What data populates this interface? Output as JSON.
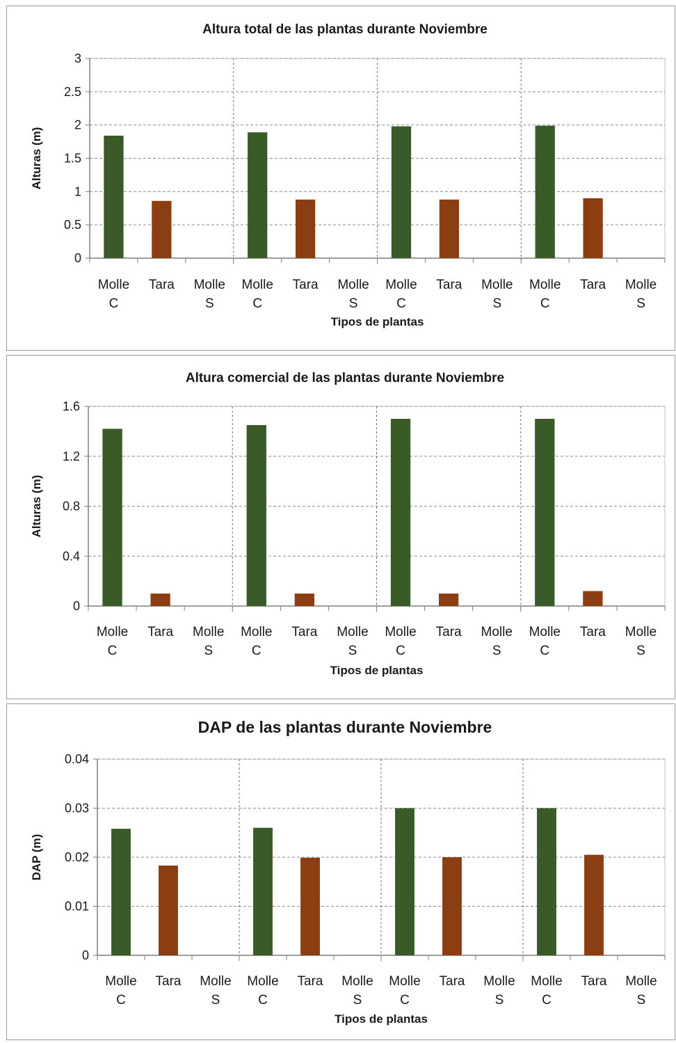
{
  "chart_data": [
    {
      "type": "bar",
      "title": "Altura total de las plantas durante Noviembre",
      "xlabel": "Tipos de plantas",
      "ylabel": "Alturas (m)",
      "ylim": [
        0,
        3
      ],
      "yticks": [
        "0",
        "0.5",
        "1",
        "1.5",
        "2",
        "2.5",
        "3"
      ],
      "grid": true,
      "categories": [
        [
          "Molle",
          "C"
        ],
        [
          "Tara",
          ""
        ],
        [
          "Molle",
          "S"
        ],
        [
          "Molle",
          "C"
        ],
        [
          "Tara",
          ""
        ],
        [
          "Molle",
          "S"
        ],
        [
          "Molle",
          "C"
        ],
        [
          "Tara",
          ""
        ],
        [
          "Molle",
          "S"
        ],
        [
          "Molle",
          "C"
        ],
        [
          "Tara",
          ""
        ],
        [
          "Molle",
          "S"
        ]
      ],
      "values": [
        1.84,
        0.86,
        0,
        1.89,
        0.88,
        0,
        1.98,
        0.88,
        0,
        1.99,
        0.9,
        0
      ],
      "bar_colors": [
        "#3a5a27",
        "#8b3e12",
        "#3a5a27",
        "#3a5a27",
        "#8b3e12",
        "#3a5a27",
        "#3a5a27",
        "#8b3e12",
        "#3a5a27",
        "#3a5a27",
        "#8b3e12",
        "#3a5a27"
      ]
    },
    {
      "type": "bar",
      "title": "Altura comercial de las plantas durante Noviembre",
      "xlabel": "Tipos de plantas",
      "ylabel": "Alturas (m)",
      "ylim": [
        0,
        1.6
      ],
      "yticks": [
        "0",
        "0.4",
        "0.8",
        "1.2",
        "1.6"
      ],
      "grid": true,
      "categories": [
        [
          "Molle",
          "C"
        ],
        [
          "Tara",
          ""
        ],
        [
          "Molle",
          "S"
        ],
        [
          "Molle",
          "C"
        ],
        [
          "Tara",
          ""
        ],
        [
          "Molle",
          "S"
        ],
        [
          "Molle",
          "C"
        ],
        [
          "Tara",
          ""
        ],
        [
          "Molle",
          "S"
        ],
        [
          "Molle",
          "C"
        ],
        [
          "Tara",
          ""
        ],
        [
          "Molle",
          "S"
        ]
      ],
      "values": [
        1.42,
        0.1,
        0,
        1.45,
        0.1,
        0,
        1.5,
        0.1,
        0,
        1.5,
        0.12,
        0
      ],
      "bar_colors": [
        "#3a5a27",
        "#8b3e12",
        "#3a5a27",
        "#3a5a27",
        "#8b3e12",
        "#3a5a27",
        "#3a5a27",
        "#8b3e12",
        "#3a5a27",
        "#3a5a27",
        "#8b3e12",
        "#3a5a27"
      ]
    },
    {
      "type": "bar",
      "title": "DAP de las plantas durante Noviembre",
      "xlabel": "Tipos de plantas",
      "ylabel": "DAP (m)",
      "ylim": [
        0,
        0.04
      ],
      "yticks": [
        "0",
        "0.01",
        "0.02",
        "0.03",
        "0.04"
      ],
      "grid": true,
      "categories": [
        [
          "Molle",
          "C"
        ],
        [
          "Tara",
          ""
        ],
        [
          "Molle",
          "S"
        ],
        [
          "Molle",
          "C"
        ],
        [
          "Tara",
          ""
        ],
        [
          "Molle",
          "S"
        ],
        [
          "Molle",
          "C"
        ],
        [
          "Tara",
          ""
        ],
        [
          "Molle",
          "S"
        ],
        [
          "Molle",
          "C"
        ],
        [
          "Tara",
          ""
        ],
        [
          "Molle",
          "S"
        ]
      ],
      "values": [
        0.0258,
        0.0183,
        0,
        0.026,
        0.0199,
        0,
        0.03,
        0.02,
        0,
        0.03,
        0.0205,
        0
      ],
      "bar_colors": [
        "#3a5a27",
        "#8b3e12",
        "#3a5a27",
        "#3a5a27",
        "#8b3e12",
        "#3a5a27",
        "#3a5a27",
        "#8b3e12",
        "#3a5a27",
        "#3a5a27",
        "#8b3e12",
        "#3a5a27"
      ]
    }
  ]
}
